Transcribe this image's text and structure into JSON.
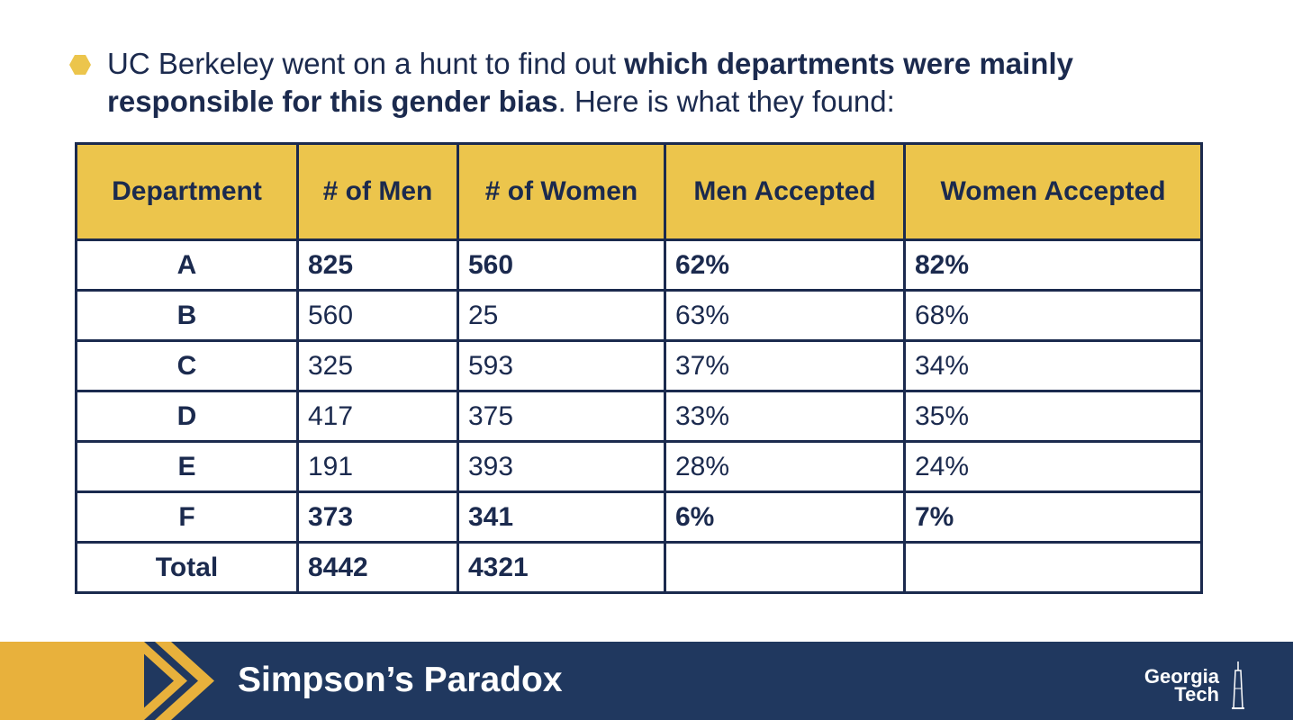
{
  "slide": {
    "bullet": {
      "text_1": "UC Berkeley went on a hunt to find out ",
      "bold_1": "which departments were mainly responsible for this gender bias",
      "text_2": ". Here is what they found:"
    },
    "table": {
      "headers": [
        "Department",
        "# of Men",
        "# of Women",
        "Men Accepted",
        "Women Accepted"
      ],
      "rows": [
        {
          "dept": "A",
          "men": "825",
          "women": "560",
          "men_accepted": "62%",
          "women_accepted": "82%"
        },
        {
          "dept": "B",
          "men": "560",
          "women": "25",
          "men_accepted": "63%",
          "women_accepted": "68%"
        },
        {
          "dept": "C",
          "men": "325",
          "women": "593",
          "men_accepted": "37%",
          "women_accepted": "34%"
        },
        {
          "dept": "D",
          "men": "417",
          "women": "375",
          "men_accepted": "33%",
          "women_accepted": "35%"
        },
        {
          "dept": "E",
          "men": "191",
          "women": "393",
          "men_accepted": "28%",
          "women_accepted": "24%"
        },
        {
          "dept": "F",
          "men": "373",
          "women": "341",
          "men_accepted": "6%",
          "women_accepted": "7%"
        }
      ],
      "total": {
        "label": "Total",
        "men": "8442",
        "women": "4321",
        "men_accepted": "",
        "women_accepted": ""
      }
    },
    "footer": {
      "title": "Simpson’s Paradox",
      "logo_line1": "Georgia",
      "logo_line2": "Tech"
    }
  },
  "colors": {
    "navy": "#1b2a4e",
    "header_gold": "#ecc54c",
    "men_highlight": "#e27a3a",
    "women_highlight": "#7da4a4",
    "footer_navy": "#20385f",
    "footer_gold": "#e8b13c"
  }
}
